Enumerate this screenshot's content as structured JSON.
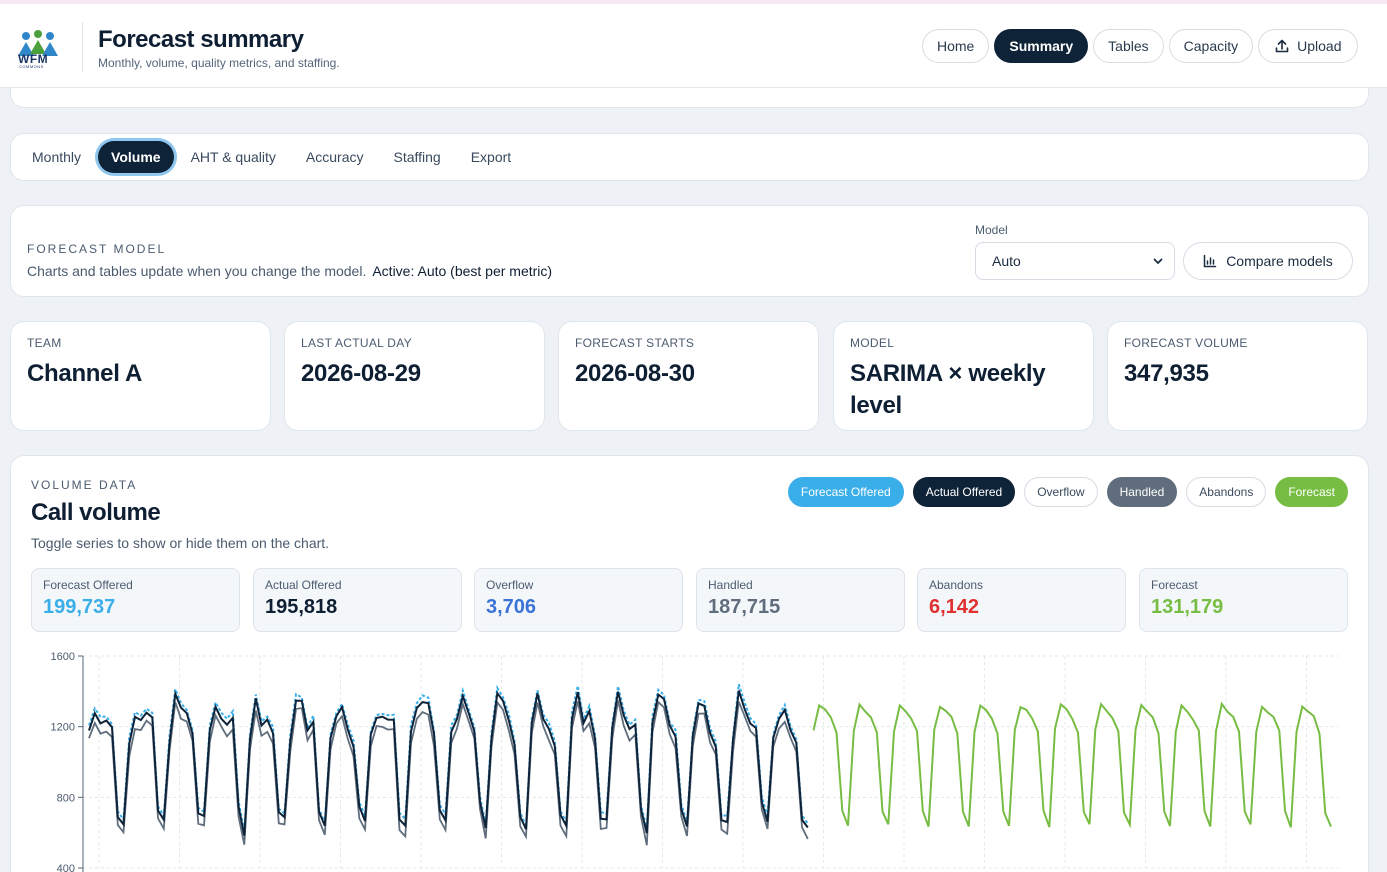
{
  "header": {
    "logo_text": "WFM",
    "logo_subtext": "COMMONS",
    "title": "Forecast summary",
    "subtitle": "Monthly, volume, quality metrics, and staffing.",
    "nav": [
      {
        "label": "Home",
        "active": false
      },
      {
        "label": "Summary",
        "active": true
      },
      {
        "label": "Tables",
        "active": false
      },
      {
        "label": "Capacity",
        "active": false
      }
    ],
    "upload_label": "Upload"
  },
  "tabs": [
    {
      "label": "Monthly",
      "active": false
    },
    {
      "label": "Volume",
      "active": true
    },
    {
      "label": "AHT & quality",
      "active": false
    },
    {
      "label": "Accuracy",
      "active": false
    },
    {
      "label": "Staffing",
      "active": false
    },
    {
      "label": "Export",
      "active": false
    }
  ],
  "forecast_model": {
    "label": "FORECAST MODEL",
    "description": "Charts and tables update when you change the model.",
    "active_text": "Active: Auto (best per metric)",
    "model_field_label": "Model",
    "model_selected": "Auto",
    "compare_label": "Compare models"
  },
  "stats": [
    {
      "label": "TEAM",
      "value": "Channel A"
    },
    {
      "label": "LAST ACTUAL DAY",
      "value": "2026-08-29"
    },
    {
      "label": "FORECAST STARTS",
      "value": "2026-08-30"
    },
    {
      "label": "MODEL",
      "value": "SARIMA × weekly level"
    },
    {
      "label": "FORECAST VOLUME",
      "value": "347,935"
    }
  ],
  "volume": {
    "section_label": "VOLUME DATA",
    "title": "Call volume",
    "hint": "Toggle series to show or hide them on the chart.",
    "chips": [
      {
        "label": "Forecast Offered",
        "on": true,
        "bg": "#3aaee8",
        "fg": "#ffffff"
      },
      {
        "label": "Actual Offered",
        "on": true,
        "bg": "#0e2238",
        "fg": "#ffffff"
      },
      {
        "label": "Overflow",
        "on": false,
        "bg": "#ffffff",
        "fg": "#3a4a5e"
      },
      {
        "label": "Handled",
        "on": true,
        "bg": "#5f6d7c",
        "fg": "#ffffff"
      },
      {
        "label": "Abandons",
        "on": false,
        "bg": "#ffffff",
        "fg": "#3a4a5e"
      },
      {
        "label": "Forecast",
        "on": true,
        "bg": "#77bd43",
        "fg": "#ffffff"
      }
    ],
    "totals": [
      {
        "label": "Forecast Offered",
        "value": "199,737",
        "color": "#3aaee8"
      },
      {
        "label": "Actual Offered",
        "value": "195,818",
        "color": "#0e1f33"
      },
      {
        "label": "Overflow",
        "value": "3,706",
        "color": "#3a73d6"
      },
      {
        "label": "Handled",
        "value": "187,715",
        "color": "#5f6d7c"
      },
      {
        "label": "Abandons",
        "value": "6,142",
        "color": "#e03131"
      },
      {
        "label": "Forecast",
        "value": "131,179",
        "color": "#77bd43"
      }
    ]
  },
  "chart_data": {
    "type": "line",
    "title": "",
    "xlabel": "",
    "ylabel": "",
    "ylim": [
      400,
      1600
    ],
    "yticks": [
      400,
      800,
      1200,
      1600
    ],
    "grid": true,
    "history_days": 126,
    "forecast_days": 91,
    "weekly_pattern": [
      1180,
      1320,
      1290,
      1250,
      1170,
      720,
      640
    ],
    "series": [
      {
        "name": "Actual Offered",
        "color": "#0e2238"
      },
      {
        "name": "Forecast Offered",
        "color": "#3aaee8"
      },
      {
        "name": "Handled",
        "color": "#5f6d7c"
      },
      {
        "name": "Forecast",
        "color": "#77bd43"
      }
    ]
  }
}
